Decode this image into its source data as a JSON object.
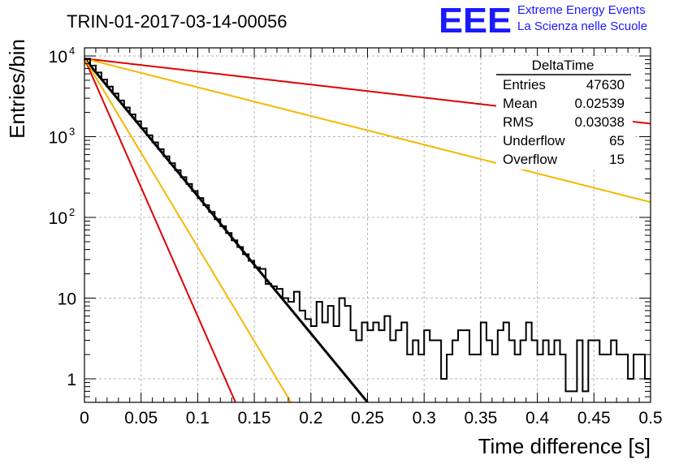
{
  "header": {
    "title": "TRIN-01-2017-03-14-00056",
    "logo_text": "EEE",
    "logo_line1": "Extreme Energy Events",
    "logo_line2": "La Scienza nelle Scuole",
    "logo_color": "#1a1aff"
  },
  "stats": {
    "name": "DeltaTime",
    "rows": [
      {
        "label": "Entries",
        "value": "47630"
      },
      {
        "label": "Mean",
        "value": "0.02539"
      },
      {
        "label": "RMS",
        "value": "0.03038"
      },
      {
        "label": "Underflow",
        "value": "65"
      },
      {
        "label": "Overflow",
        "value": "15"
      }
    ]
  },
  "chart_data": {
    "type": "line",
    "title": "TRIN-01-2017-03-14-00056",
    "xlabel": "Time difference [s]",
    "ylabel": "Entries/bin",
    "xlim": [
      0,
      0.5
    ],
    "ylim": [
      0.5,
      16000
    ],
    "yscale": "log",
    "grid": true,
    "xticks": [
      "0",
      "0.05",
      "0.1",
      "0.15",
      "0.2",
      "0.25",
      "0.3",
      "0.35",
      "0.4",
      "0.45",
      "0.5"
    ],
    "yticks": [
      {
        "value": 1,
        "base": "1",
        "exp": ""
      },
      {
        "value": 10,
        "base": "10",
        "exp": ""
      },
      {
        "value": 100,
        "base": "10",
        "exp": "2"
      },
      {
        "value": 1000,
        "base": "10",
        "exp": "3"
      },
      {
        "value": 10000,
        "base": "10",
        "exp": "4"
      }
    ],
    "histogram": {
      "bin_width": 0.005,
      "color": "#000000",
      "values": [
        9250,
        7600,
        6240,
        5100,
        4180,
        3430,
        2810,
        2300,
        1890,
        1550,
        1270,
        1040,
        850,
        700,
        570,
        470,
        385,
        315,
        260,
        212,
        174,
        142,
        117,
        95,
        78,
        64,
        52,
        43,
        35,
        29,
        24,
        23,
        15,
        14,
        13,
        10,
        9,
        12,
        7,
        5.5,
        4.5,
        9,
        5,
        8,
        4.5,
        10,
        8,
        4,
        3,
        5,
        4,
        5,
        4,
        6,
        3,
        4,
        5,
        2,
        3,
        2,
        4,
        3,
        3,
        1,
        2,
        3,
        4,
        4,
        2,
        2,
        5,
        3,
        2,
        4,
        5,
        3,
        2,
        3,
        5,
        3,
        2,
        3,
        2,
        3,
        2,
        0.7,
        0.7,
        3,
        0.7,
        3,
        3,
        2,
        2,
        3,
        2,
        2,
        1,
        2,
        2,
        1
      ]
    },
    "series": [
      {
        "values_fn": "exp",
        "A": 9300,
        "tau": 0.0255,
        "x_end": 0.25,
        "color": "#000000"
      },
      {
        "values_fn": "exp",
        "A": 9300,
        "tau": 0.269,
        "x_end": 0.5,
        "color": "#e00000"
      },
      {
        "values_fn": "exp",
        "A": 9300,
        "tau": 0.122,
        "x_end": 0.5,
        "color": "#f5b800"
      },
      {
        "values_fn": "exp",
        "A": 9300,
        "tau": 0.0136,
        "x_end": 0.5,
        "color": "#e00000"
      },
      {
        "values_fn": "exp",
        "A": 9300,
        "tau": 0.0186,
        "x_end": 0.5,
        "color": "#f5b800"
      }
    ]
  }
}
